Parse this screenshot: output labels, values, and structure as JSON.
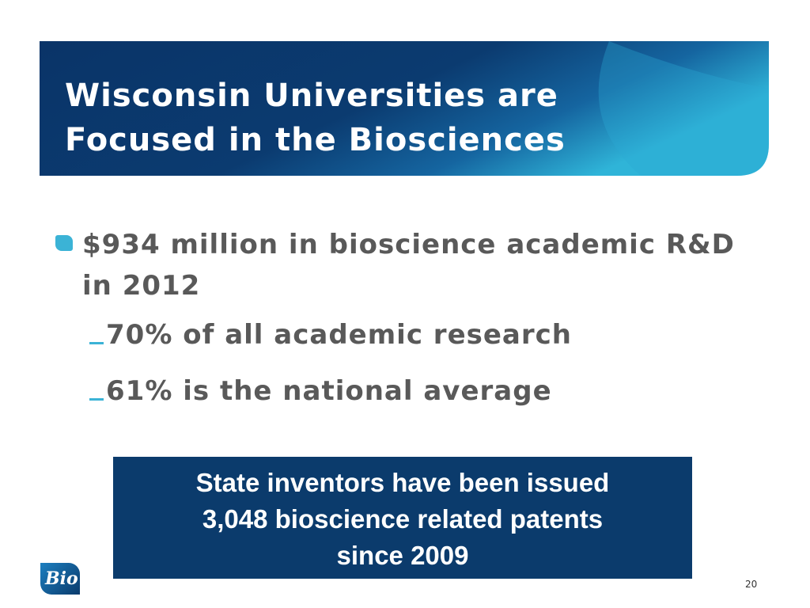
{
  "header": {
    "title_lines": [
      "Wisconsin Universities are",
      "Focused in the Biosciences"
    ]
  },
  "bullet": "$934 million in bioscience academic R&D in 2012",
  "sub_bullets": [
    "70% of all academic research",
    "61% is the national average"
  ],
  "callout": {
    "lines": [
      "State inventors have been issued",
      "3,048 bioscience related patents",
      "since 2009"
    ]
  },
  "logo": "Bio",
  "page_number": "20"
}
